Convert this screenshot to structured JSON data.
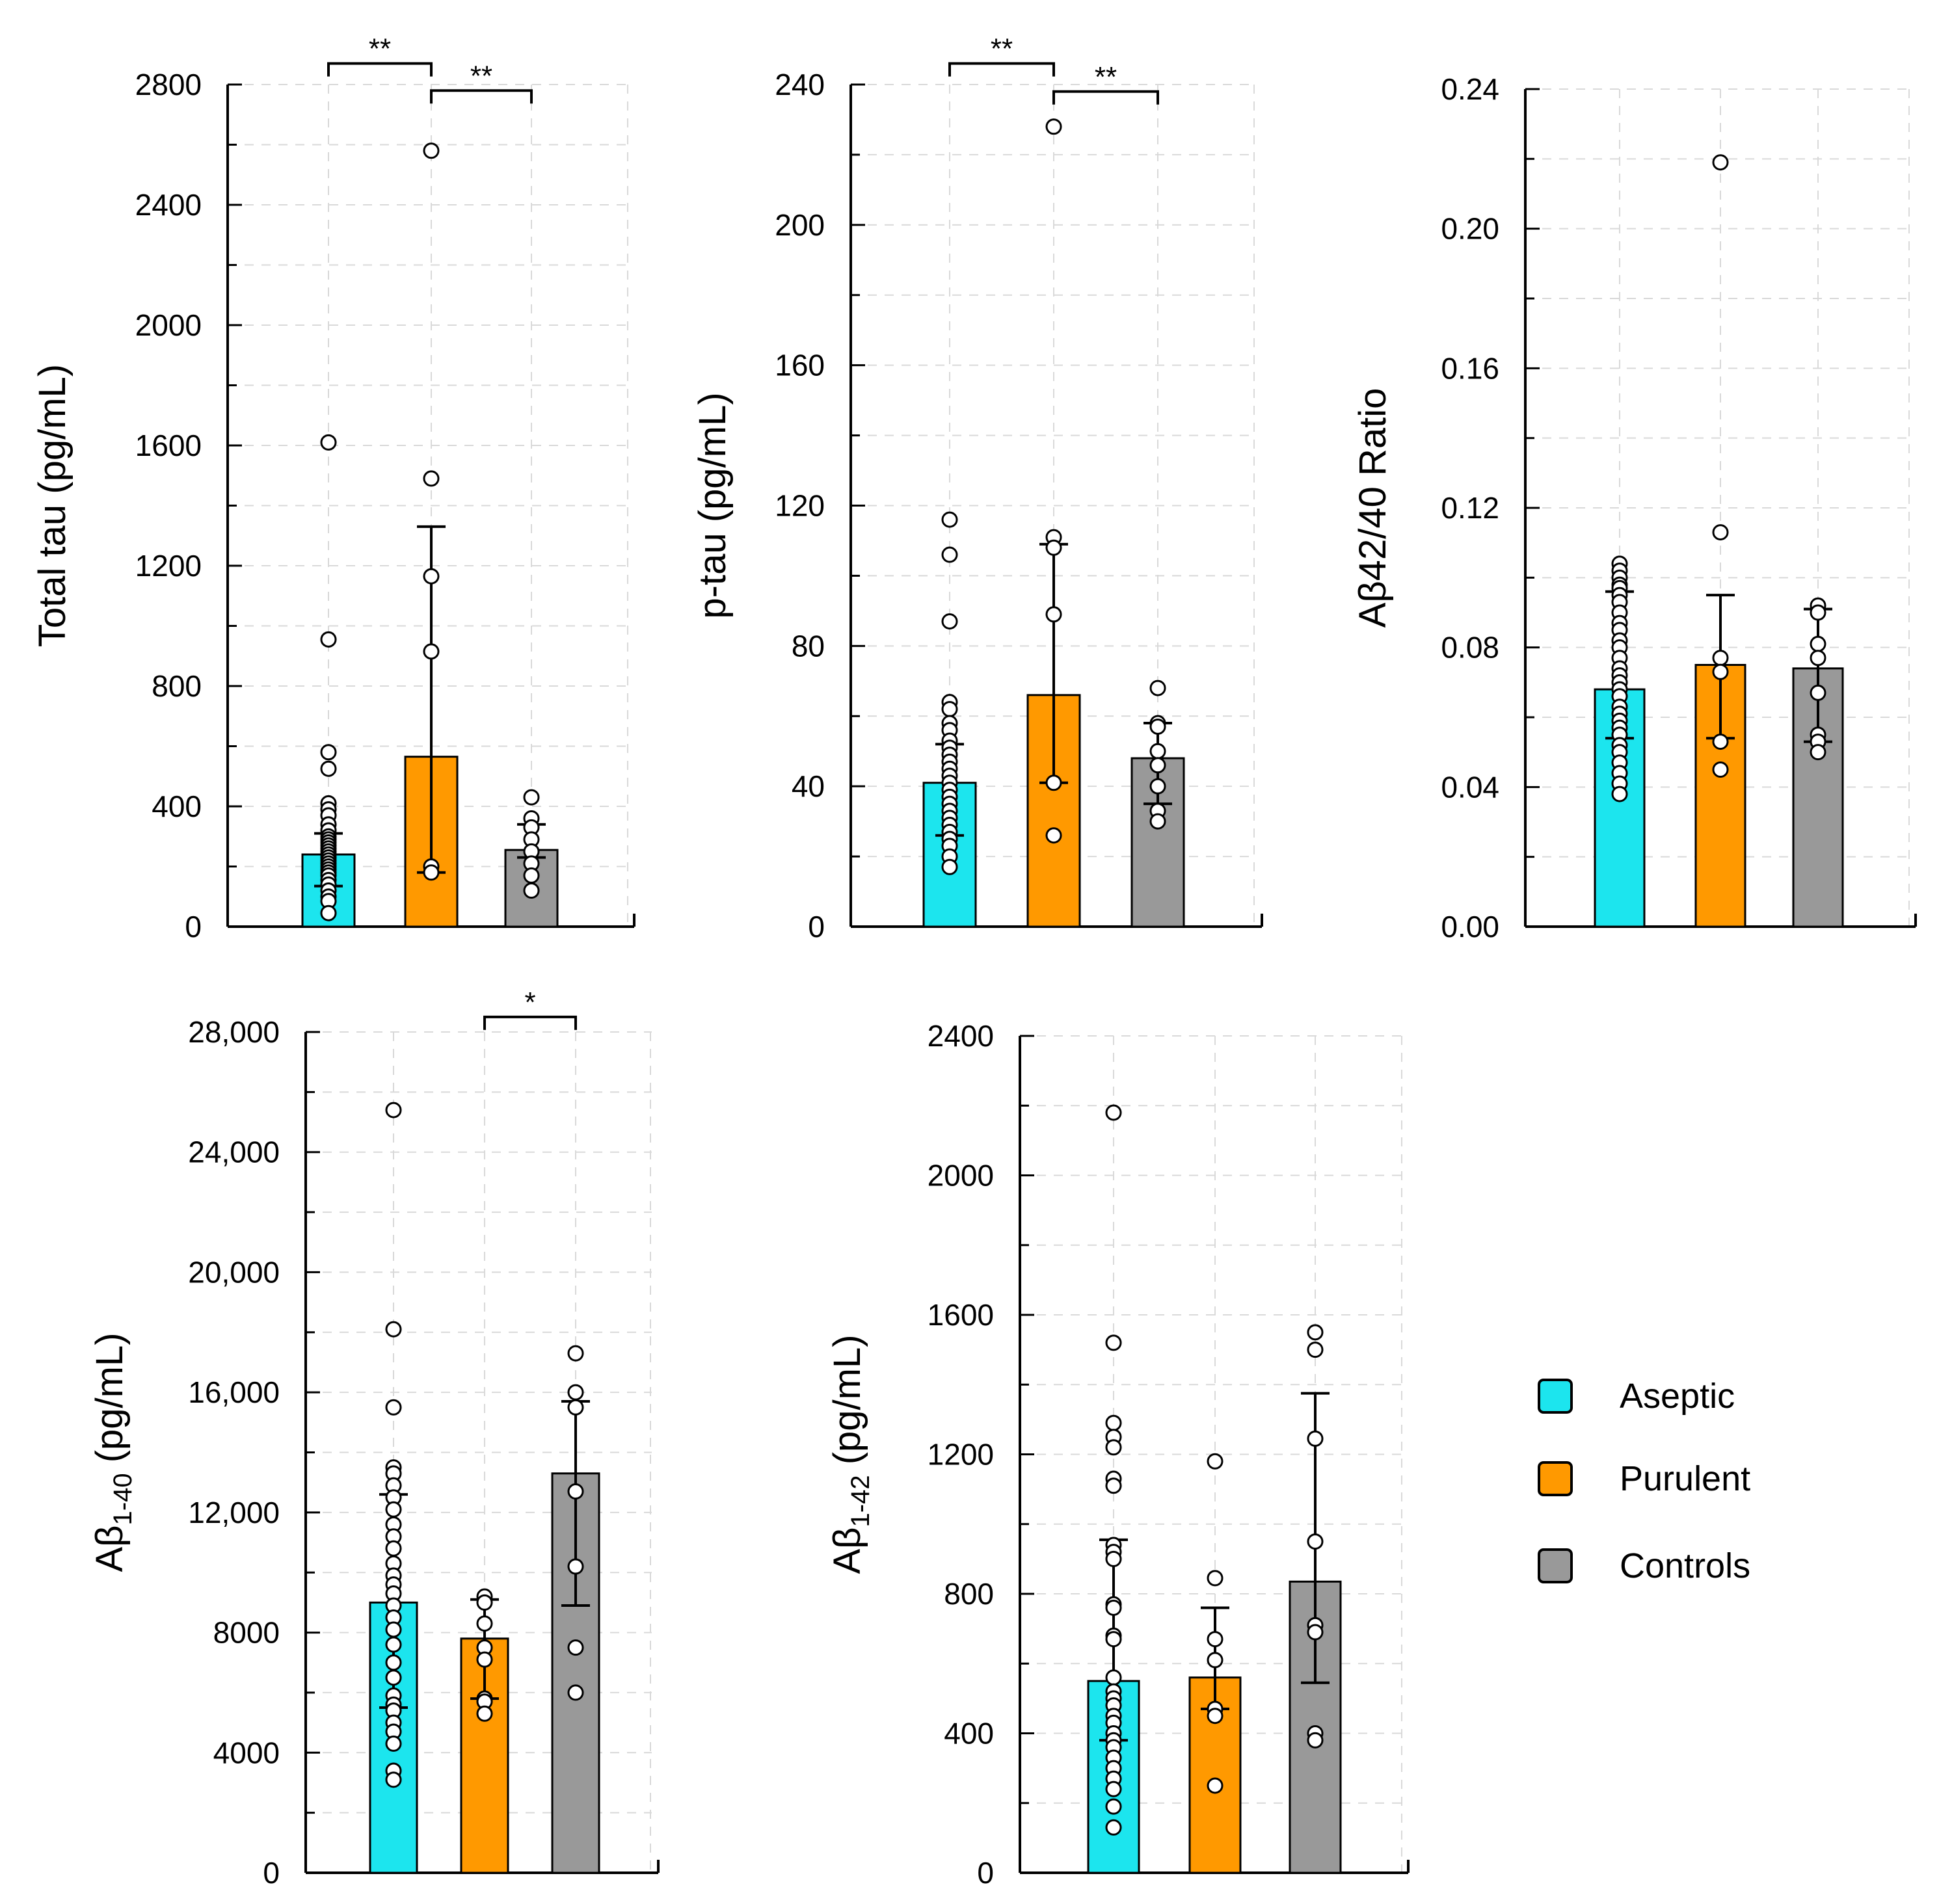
{
  "colors": {
    "aseptic": "#1CE5EE",
    "purulent": "#FF9900",
    "controls": "#999999",
    "axis": "#000000",
    "grid": "#D9D9D9"
  },
  "groups": [
    "Aseptic",
    "Purulent",
    "Controls"
  ],
  "legend": {
    "placement": "right of bottom charts",
    "items": [
      {
        "label": "Aseptic",
        "color_key": "aseptic"
      },
      {
        "label": "Purulent",
        "color_key": "purulent"
      },
      {
        "label": "Controls",
        "color_key": "controls"
      }
    ]
  },
  "chart_data": [
    {
      "type": "bar",
      "title": "",
      "ylabel": "Total tau (pg/mL)",
      "ylim": [
        0,
        2800
      ],
      "yticks": [
        0,
        400,
        800,
        1200,
        1600,
        2000,
        2400,
        2800
      ],
      "ytick_labels": [
        "0",
        "400",
        "800",
        "1200",
        "1600",
        "2000",
        "2400",
        "2800"
      ],
      "categories": [
        "Aseptic",
        "Purulent",
        "Controls"
      ],
      "values": [
        240,
        565,
        255
      ],
      "error_upper": [
        310,
        1330,
        340
      ],
      "error_lower": [
        135,
        180,
        230
      ],
      "points": [
        [
          1610,
          955,
          580,
          525,
          410,
          390,
          370,
          340,
          320,
          300,
          290,
          280,
          270,
          260,
          250,
          240,
          230,
          220,
          210,
          200,
          190,
          180,
          170,
          155,
          140,
          120,
          100,
          85,
          45
        ],
        [
          2580,
          1490,
          1165,
          915,
          200,
          180
        ],
        [
          430,
          360,
          330,
          290,
          250,
          210,
          170,
          120
        ]
      ],
      "significance": [
        {
          "from": 0,
          "to": 1,
          "label": "**",
          "y": 2870
        },
        {
          "from": 1,
          "to": 2,
          "label": "**",
          "y": 2780
        }
      ]
    },
    {
      "type": "bar",
      "title": "",
      "ylabel": "p-tau (pg/mL)",
      "ylim": [
        0,
        240
      ],
      "yticks": [
        0,
        40,
        80,
        120,
        160,
        200,
        240
      ],
      "ytick_labels": [
        "0",
        "40",
        "80",
        "120",
        "160",
        "200",
        "240"
      ],
      "categories": [
        "Aseptic",
        "Purulent",
        "Controls"
      ],
      "values": [
        41,
        66,
        48
      ],
      "error_upper": [
        52,
        109,
        58
      ],
      "error_lower": [
        26,
        41,
        35
      ],
      "points": [
        [
          116,
          106,
          87,
          64,
          62,
          58,
          56,
          53,
          51,
          49,
          47,
          45,
          43,
          41,
          39,
          37,
          35,
          33,
          31,
          29,
          27,
          25,
          23,
          20,
          17
        ],
        [
          228,
          111,
          108,
          89,
          41,
          26
        ],
        [
          68,
          58,
          57,
          50,
          46,
          40,
          33,
          30
        ]
      ],
      "significance": [
        {
          "from": 0,
          "to": 1,
          "label": "**",
          "y": 246
        },
        {
          "from": 1,
          "to": 2,
          "label": "**",
          "y": 238
        }
      ]
    },
    {
      "type": "bar",
      "title": "",
      "ylabel": "Aβ42/40 Ratio",
      "ylim": [
        0,
        0.24
      ],
      "yticks": [
        0,
        0.04,
        0.08,
        0.12,
        0.16,
        0.2,
        0.24
      ],
      "ytick_labels": [
        "0.00",
        "0.04",
        "0.08",
        "0.12",
        "0.16",
        "0.20",
        "0.24"
      ],
      "categories": [
        "Aseptic",
        "Purulent",
        "Controls"
      ],
      "values": [
        0.068,
        0.075,
        0.074
      ],
      "error_upper": [
        0.096,
        0.095,
        0.091
      ],
      "error_lower": [
        0.054,
        0.054,
        0.053
      ],
      "points": [
        [
          0.104,
          0.102,
          0.1,
          0.098,
          0.097,
          0.095,
          0.093,
          0.09,
          0.087,
          0.085,
          0.082,
          0.08,
          0.077,
          0.074,
          0.072,
          0.07,
          0.068,
          0.066,
          0.063,
          0.061,
          0.059,
          0.057,
          0.055,
          0.052,
          0.05,
          0.047,
          0.044,
          0.041,
          0.038
        ],
        [
          0.219,
          0.113,
          0.077,
          0.073,
          0.053,
          0.045
        ],
        [
          0.092,
          0.09,
          0.081,
          0.077,
          0.067,
          0.055,
          0.053,
          0.05
        ]
      ],
      "significance": []
    },
    {
      "type": "bar",
      "title": "",
      "ylabel": "Aβ",
      "ylabel_sub": "1-40",
      "ylabel_rest": " (pg/mL)",
      "ylim": [
        0,
        28000
      ],
      "yticks": [
        0,
        4000,
        8000,
        12000,
        16000,
        20000,
        24000,
        28000
      ],
      "ytick_labels": [
        "0",
        "4000",
        "8000",
        "12,000",
        "16,000",
        "20,000",
        "24,000",
        "28,000"
      ],
      "categories": [
        "Aseptic",
        "Purulent",
        "Controls"
      ],
      "values": [
        9000,
        7800,
        13300
      ],
      "error_upper": [
        12600,
        9100,
        15700
      ],
      "error_lower": [
        5500,
        5800,
        8900
      ],
      "points": [
        [
          25400,
          18100,
          15500,
          13500,
          13300,
          12900,
          12500,
          12100,
          11600,
          11200,
          10800,
          10300,
          9900,
          9600,
          9300,
          8900,
          8500,
          8100,
          7600,
          7000,
          6500,
          5900,
          5600,
          5400,
          5000,
          4700,
          4300,
          3400,
          3100
        ],
        [
          9200,
          9000,
          8300,
          7500,
          7100,
          5800,
          5700,
          5300
        ],
        [
          17300,
          16000,
          15500,
          12700,
          10200,
          7500,
          6000
        ]
      ],
      "significance": [
        {
          "from": 1,
          "to": 2,
          "label": "*",
          "y": 28500
        }
      ]
    },
    {
      "type": "bar",
      "title": "",
      "ylabel": "Aβ",
      "ylabel_sub": "1-42",
      "ylabel_rest": " (pg/mL)",
      "ylim": [
        0,
        2400
      ],
      "yticks": [
        0,
        400,
        800,
        1200,
        1600,
        2000,
        2400
      ],
      "ytick_labels": [
        "0",
        "400",
        "800",
        "1200",
        "1600",
        "2000",
        "2400"
      ],
      "categories": [
        "Aseptic",
        "Purulent",
        "Controls"
      ],
      "values": [
        550,
        560,
        835
      ],
      "error_upper": [
        955,
        760,
        1375
      ],
      "error_lower": [
        380,
        470,
        545
      ],
      "points": [
        [
          2180,
          1520,
          1290,
          1250,
          1220,
          1130,
          1110,
          940,
          920,
          900,
          770,
          760,
          680,
          670,
          560,
          520,
          500,
          480,
          450,
          430,
          400,
          380,
          360,
          330,
          300,
          270,
          240,
          190,
          130
        ],
        [
          1180,
          845,
          670,
          610,
          470,
          450,
          250
        ],
        [
          1550,
          1500,
          1245,
          950,
          710,
          690,
          400,
          380
        ]
      ],
      "significance": []
    }
  ]
}
